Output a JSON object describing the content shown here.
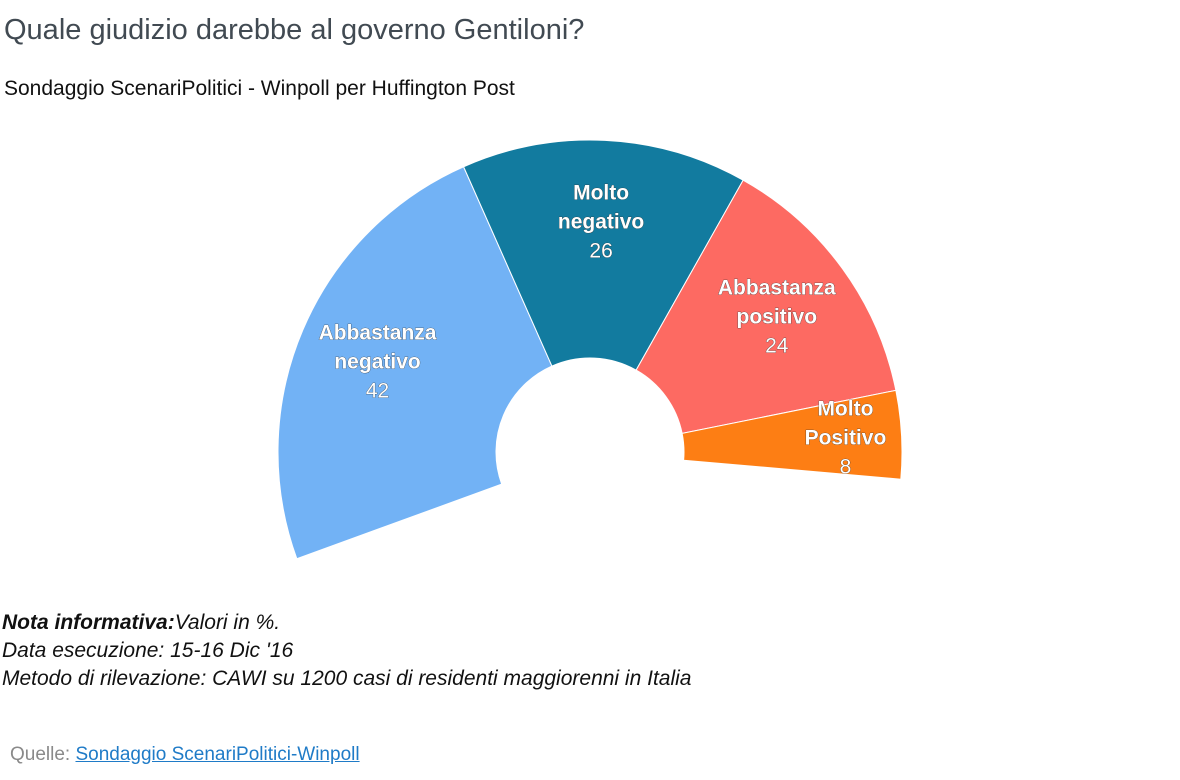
{
  "chart_data": {
    "type": "pie",
    "subtype": "half-donut",
    "title": "Quale giudizio darebbe al governo Gentiloni?",
    "subtitle": "Sondaggio ScenariPolitici - Winpoll per Huffington Post",
    "slices": [
      {
        "name_lines": [
          "Abbastanza",
          "negativo"
        ],
        "value": 42,
        "color": "#72b2f5"
      },
      {
        "name_lines": [
          "Molto",
          "negativo"
        ],
        "value": 26,
        "color": "#127b9f"
      },
      {
        "name_lines": [
          "Abbastanza",
          "positivo"
        ],
        "value": 24,
        "color": "#fd6a62"
      },
      {
        "name_lines": [
          "Molto",
          "Positivo"
        ],
        "value": 8,
        "color": "#fd7e14"
      }
    ]
  },
  "notes": {
    "label": "Nota informativa:",
    "line1_text": "Valori in %.",
    "line2": "Data esecuzione: 15-16 Dic '16",
    "line3": "Metodo di rilevazione: CAWI su 1200 casi di residenti maggiorenni in Italia"
  },
  "source": {
    "label": "Quelle:",
    "link_text": "Sondaggio ScenariPolitici-Winpoll"
  }
}
